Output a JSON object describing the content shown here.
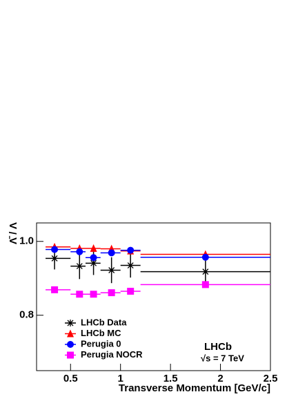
{
  "chart_data": {
    "type": "scatter",
    "ylabel": "Λ̄ / Λ",
    "xlabel": "Transverse Momentum [GeV/c]",
    "annotations": [
      "LHCb",
      "√s = 7 TeV"
    ],
    "x": [
      0.34,
      0.59,
      0.73,
      0.91,
      1.1,
      1.85
    ],
    "bins": [
      0.25,
      0.5,
      0.65,
      0.8,
      1.0,
      1.2,
      2.5
    ],
    "xlim": [
      0.16,
      2.5
    ],
    "ylim": [
      0.65,
      1.05
    ],
    "xticks": [
      0.5,
      1,
      1.5,
      2,
      2.5
    ],
    "yticks": [
      0.8,
      {
        "value": 1,
        "label": "1.0"
      }
    ],
    "legend": "lower left",
    "series": [
      {
        "name": "LHCb Data",
        "color": "#000000",
        "marker": "star",
        "values": [
          0.954,
          0.933,
          0.941,
          0.922,
          0.935,
          0.918
        ],
        "errors": [
          0.03,
          0.035,
          0.032,
          0.035,
          0.033,
          0.03
        ]
      },
      {
        "name": "LHCb MC",
        "color": "#ff0000",
        "marker": "triangle",
        "values": [
          0.985,
          0.981,
          0.981,
          0.98,
          0.974,
          0.965
        ]
      },
      {
        "name": "Perugia 0",
        "color": "#0000ff",
        "marker": "circle",
        "values": [
          0.978,
          0.972,
          0.956,
          0.969,
          0.976,
          0.957
        ]
      },
      {
        "name": "Perugia NOCR",
        "color": "#ff00ff",
        "marker": "square",
        "values": [
          0.869,
          0.857,
          0.857,
          0.861,
          0.865,
          0.883
        ]
      }
    ]
  }
}
